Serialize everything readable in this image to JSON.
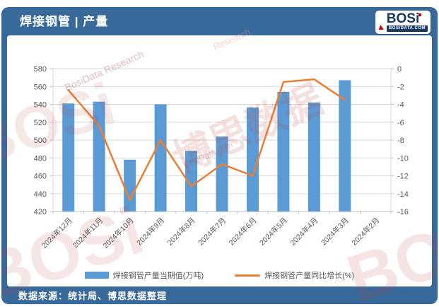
{
  "header": {
    "title": "焊接钢管 | 产量",
    "logo": {
      "text": "BOSi",
      "sub": "BOSIDATA.COM"
    }
  },
  "footer": {
    "source": "数据来源：统计局、博思数据整理"
  },
  "watermarks": [
    "博思数据",
    "BosiData Research",
    "BOSi",
    "BOSi",
    "BOSi",
    "BosiData.com",
    "Research"
  ],
  "colors": {
    "header_bg": "#38699B",
    "bar": "#5B9BD5",
    "line": "#ED7D31",
    "grid": "#D9D9D9",
    "axis_text": "#595959",
    "logo_navy": "#17375E",
    "logo_red": "#C00000"
  },
  "chart_data": {
    "type": "bar",
    "subtype": "bar+line combo, dual axis",
    "categories": [
      "2024年12月",
      "2024年11月",
      "2024年10月",
      "2024年9月",
      "2024年8月",
      "2024年7月",
      "2024年6月",
      "2024年5月",
      "2024年4月",
      "2024年3月",
      "2024年2月"
    ],
    "series": [
      {
        "name": "焊接钢管产量当期值(万吨)",
        "type": "bar",
        "axis": "left",
        "color": "#5B9BD5",
        "values": [
          541,
          543,
          478,
          540,
          488,
          504,
          536.5,
          554,
          542,
          567,
          null
        ]
      },
      {
        "name": "焊接钢管产量同比增长(%)",
        "type": "line",
        "axis": "right",
        "color": "#ED7D31",
        "values": [
          -2.4,
          -6.4,
          -14.7,
          -8.0,
          -13.2,
          -10.7,
          -12.0,
          -1.5,
          -1.2,
          -3.5,
          null
        ]
      }
    ],
    "left_axis": {
      "min": 420,
      "max": 580,
      "step": 20
    },
    "right_axis": {
      "min": -16,
      "max": 0,
      "step": 2
    },
    "grid": true,
    "legend_position": "bottom",
    "title": "焊接钢管 | 产量",
    "xlabel": "",
    "ylabel": ""
  }
}
